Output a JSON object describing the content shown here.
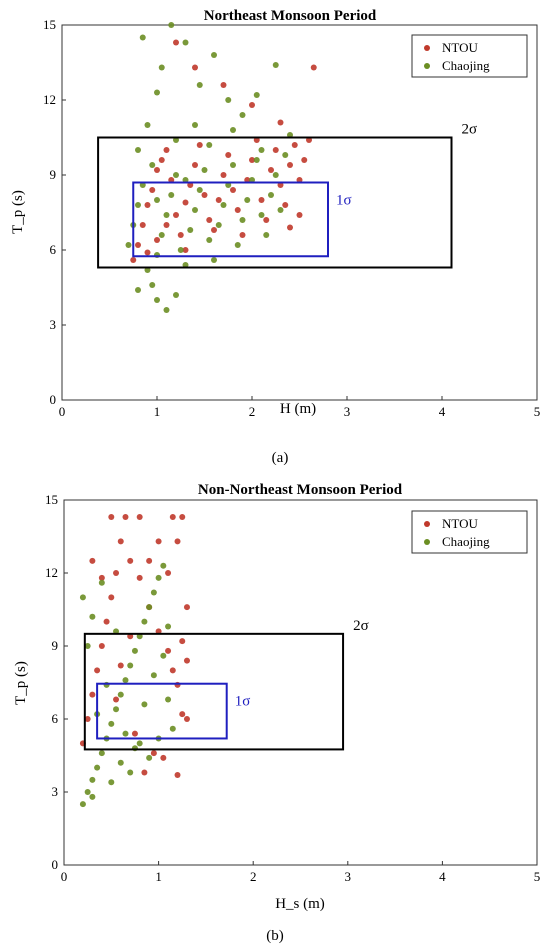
{
  "figure": {
    "panel_a_caption": "(a)",
    "panel_b_caption": "(b)"
  },
  "chart_data": [
    {
      "type": "scatter",
      "title": "Northeast Monsoon Period",
      "xlabel": "H  (m)",
      "ylabel": "T_p (s)",
      "xlim": [
        0,
        5
      ],
      "ylim": [
        0,
        15
      ],
      "xticks": [
        0,
        1,
        2,
        3,
        4,
        5
      ],
      "yticks": [
        0,
        3,
        6,
        9,
        12,
        15
      ],
      "grid": false,
      "legend_position": "top-right",
      "series": [
        {
          "name": "NTOU",
          "color": "#c0392b",
          "points": [
            [
              0.75,
              5.6
            ],
            [
              0.8,
              6.2
            ],
            [
              0.85,
              7.0
            ],
            [
              0.9,
              7.8
            ],
            [
              0.95,
              8.4
            ],
            [
              1.0,
              9.2
            ],
            [
              1.05,
              9.6
            ],
            [
              1.1,
              10.0
            ],
            [
              1.15,
              8.8
            ],
            [
              1.2,
              7.4
            ],
            [
              1.25,
              6.6
            ],
            [
              1.3,
              7.9
            ],
            [
              1.35,
              8.6
            ],
            [
              1.4,
              9.4
            ],
            [
              1.45,
              10.2
            ],
            [
              1.5,
              8.2
            ],
            [
              1.55,
              7.2
            ],
            [
              1.6,
              6.8
            ],
            [
              1.65,
              8.0
            ],
            [
              1.7,
              9.0
            ],
            [
              1.75,
              9.8
            ],
            [
              1.8,
              8.4
            ],
            [
              1.85,
              7.6
            ],
            [
              1.9,
              6.6
            ],
            [
              1.95,
              8.8
            ],
            [
              2.0,
              9.6
            ],
            [
              2.05,
              10.4
            ],
            [
              2.1,
              8.0
            ],
            [
              2.15,
              7.2
            ],
            [
              2.2,
              9.2
            ],
            [
              2.25,
              10.0
            ],
            [
              2.3,
              8.6
            ],
            [
              2.35,
              7.8
            ],
            [
              2.4,
              9.4
            ],
            [
              2.45,
              10.2
            ],
            [
              2.5,
              8.8
            ],
            [
              2.55,
              9.6
            ],
            [
              2.6,
              10.4
            ],
            [
              2.65,
              13.3
            ],
            [
              2.3,
              11.1
            ],
            [
              2.0,
              11.8
            ],
            [
              1.7,
              12.6
            ],
            [
              1.4,
              13.3
            ],
            [
              1.2,
              14.3
            ],
            [
              2.5,
              7.4
            ],
            [
              2.4,
              6.9
            ],
            [
              0.9,
              5.9
            ],
            [
              1.0,
              6.4
            ],
            [
              1.1,
              7.0
            ],
            [
              1.3,
              6.0
            ]
          ]
        },
        {
          "name": "Chaojing",
          "color": "#6b8e23",
          "points": [
            [
              0.7,
              6.2
            ],
            [
              0.75,
              7.0
            ],
            [
              0.8,
              7.8
            ],
            [
              0.85,
              8.6
            ],
            [
              0.9,
              5.2
            ],
            [
              0.95,
              4.6
            ],
            [
              1.0,
              5.8
            ],
            [
              1.05,
              6.6
            ],
            [
              1.1,
              7.4
            ],
            [
              1.15,
              8.2
            ],
            [
              1.2,
              9.0
            ],
            [
              1.25,
              6.0
            ],
            [
              1.3,
              5.4
            ],
            [
              1.35,
              6.8
            ],
            [
              1.4,
              7.6
            ],
            [
              1.45,
              8.4
            ],
            [
              1.5,
              9.2
            ],
            [
              1.55,
              6.4
            ],
            [
              1.6,
              5.6
            ],
            [
              1.65,
              7.0
            ],
            [
              1.7,
              7.8
            ],
            [
              1.75,
              8.6
            ],
            [
              1.8,
              9.4
            ],
            [
              1.85,
              6.2
            ],
            [
              1.9,
              7.2
            ],
            [
              1.95,
              8.0
            ],
            [
              2.0,
              8.8
            ],
            [
              2.05,
              9.6
            ],
            [
              2.1,
              7.4
            ],
            [
              2.15,
              6.6
            ],
            [
              2.2,
              8.2
            ],
            [
              2.25,
              9.0
            ],
            [
              2.3,
              7.6
            ],
            [
              1.0,
              4.0
            ],
            [
              1.1,
              3.6
            ],
            [
              0.8,
              4.4
            ],
            [
              1.2,
              4.2
            ],
            [
              0.9,
              11.0
            ],
            [
              1.0,
              12.3
            ],
            [
              0.85,
              14.5
            ],
            [
              1.05,
              13.3
            ],
            [
              1.15,
              15.0
            ],
            [
              1.3,
              14.3
            ],
            [
              1.45,
              12.6
            ],
            [
              1.6,
              13.8
            ],
            [
              1.75,
              12.0
            ],
            [
              1.9,
              11.4
            ],
            [
              2.05,
              12.2
            ],
            [
              2.25,
              13.4
            ],
            [
              2.4,
              10.6
            ],
            [
              0.8,
              10.0
            ],
            [
              0.95,
              9.4
            ],
            [
              1.2,
              10.4
            ],
            [
              1.4,
              11.0
            ],
            [
              1.55,
              10.2
            ],
            [
              1.8,
              10.8
            ],
            [
              2.1,
              10.0
            ],
            [
              2.35,
              9.8
            ],
            [
              1.0,
              8.0
            ],
            [
              1.3,
              8.8
            ]
          ]
        }
      ],
      "annotations": [
        {
          "label": "2σ",
          "kind": "box",
          "color": "#000000",
          "x0": 0.38,
          "x1": 4.1,
          "y0": 5.3,
          "y1": 10.5
        },
        {
          "label": "1σ",
          "kind": "box",
          "color": "#1f1fbf",
          "x0": 0.75,
          "x1": 2.8,
          "y0": 5.75,
          "y1": 8.7
        }
      ]
    },
    {
      "type": "scatter",
      "title": "Non-Northeast Monsoon Period",
      "xlabel": "H_s (m)",
      "ylabel": "T_p (s)",
      "xlim": [
        0,
        5
      ],
      "ylim": [
        0,
        15
      ],
      "xticks": [
        0,
        1,
        2,
        3,
        4,
        5
      ],
      "yticks": [
        0,
        3,
        6,
        9,
        12,
        15
      ],
      "grid": false,
      "legend_position": "top-right",
      "series": [
        {
          "name": "NTOU",
          "color": "#c0392b",
          "points": [
            [
              0.2,
              5.0
            ],
            [
              0.25,
              6.0
            ],
            [
              0.3,
              7.0
            ],
            [
              0.35,
              8.0
            ],
            [
              0.4,
              9.0
            ],
            [
              0.45,
              10.0
            ],
            [
              0.5,
              11.0
            ],
            [
              0.55,
              12.0
            ],
            [
              0.6,
              13.3
            ],
            [
              0.5,
              14.3
            ],
            [
              0.65,
              14.3
            ],
            [
              0.8,
              14.3
            ],
            [
              0.7,
              12.5
            ],
            [
              0.8,
              11.8
            ],
            [
              0.9,
              10.6
            ],
            [
              1.0,
              9.6
            ],
            [
              1.1,
              8.8
            ],
            [
              1.15,
              8.0
            ],
            [
              1.2,
              7.4
            ],
            [
              1.25,
              6.2
            ],
            [
              1.3,
              6.0
            ],
            [
              1.2,
              13.3
            ],
            [
              1.15,
              14.3
            ],
            [
              1.25,
              14.3
            ],
            [
              1.0,
              13.3
            ],
            [
              0.9,
              12.5
            ],
            [
              1.3,
              10.6
            ],
            [
              1.25,
              9.2
            ],
            [
              0.75,
              5.4
            ],
            [
              0.95,
              4.6
            ],
            [
              1.05,
              4.4
            ],
            [
              0.85,
              3.8
            ],
            [
              1.2,
              3.7
            ],
            [
              0.6,
              8.2
            ],
            [
              0.7,
              9.4
            ],
            [
              0.4,
              11.8
            ],
            [
              0.3,
              12.5
            ],
            [
              1.3,
              8.4
            ],
            [
              1.1,
              12.0
            ],
            [
              0.55,
              6.8
            ]
          ]
        },
        {
          "name": "Chaojing",
          "color": "#6b8e23",
          "points": [
            [
              0.2,
              2.5
            ],
            [
              0.25,
              3.0
            ],
            [
              0.3,
              3.5
            ],
            [
              0.35,
              4.0
            ],
            [
              0.4,
              4.6
            ],
            [
              0.45,
              5.2
            ],
            [
              0.5,
              5.8
            ],
            [
              0.55,
              6.4
            ],
            [
              0.6,
              7.0
            ],
            [
              0.65,
              7.6
            ],
            [
              0.7,
              8.2
            ],
            [
              0.75,
              8.8
            ],
            [
              0.8,
              9.4
            ],
            [
              0.85,
              10.0
            ],
            [
              0.9,
              10.6
            ],
            [
              0.95,
              11.2
            ],
            [
              1.0,
              11.8
            ],
            [
              1.05,
              12.3
            ],
            [
              0.3,
              10.2
            ],
            [
              0.4,
              11.6
            ],
            [
              0.2,
              11.0
            ],
            [
              0.25,
              9.0
            ],
            [
              0.35,
              6.2
            ],
            [
              0.45,
              7.4
            ],
            [
              0.55,
              9.6
            ],
            [
              0.65,
              5.4
            ],
            [
              0.75,
              4.8
            ],
            [
              0.85,
              6.6
            ],
            [
              0.95,
              7.8
            ],
            [
              1.05,
              8.6
            ],
            [
              1.1,
              6.8
            ],
            [
              1.15,
              5.6
            ],
            [
              0.3,
              2.8
            ],
            [
              0.5,
              3.4
            ],
            [
              0.6,
              4.2
            ],
            [
              0.7,
              3.8
            ],
            [
              0.8,
              5.0
            ],
            [
              0.9,
              4.4
            ],
            [
              1.0,
              5.2
            ],
            [
              1.1,
              9.8
            ]
          ]
        }
      ],
      "annotations": [
        {
          "label": "2σ",
          "kind": "box",
          "color": "#000000",
          "x0": 0.22,
          "x1": 2.95,
          "y0": 4.75,
          "y1": 9.5
        },
        {
          "label": "1σ",
          "kind": "box",
          "color": "#1f1fbf",
          "x0": 0.35,
          "x1": 1.72,
          "y0": 5.2,
          "y1": 7.45
        }
      ]
    }
  ]
}
